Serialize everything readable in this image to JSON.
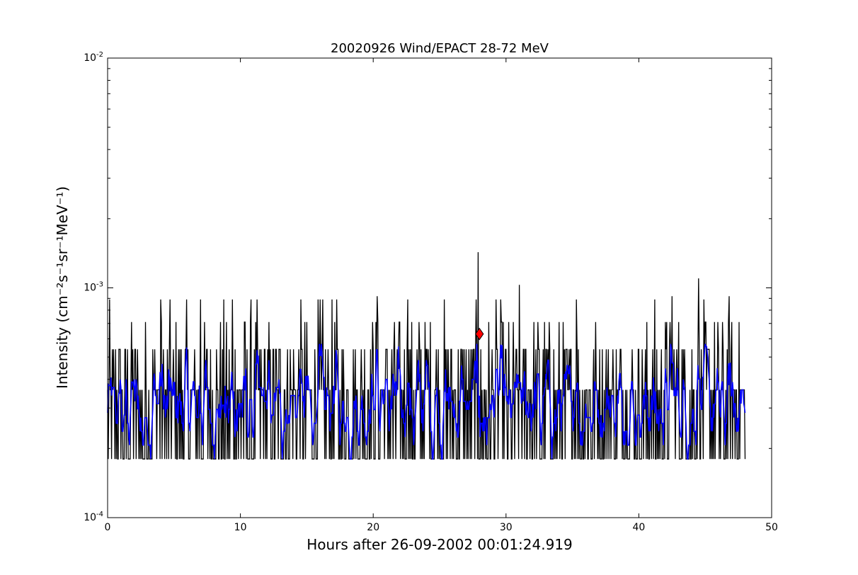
{
  "chart_data": {
    "type": "line",
    "title": "20020926 Wind/EPACT 28-72 MeV",
    "xlabel": "Hours after 26-09-2002 00:01:24.919",
    "ylabel": "Intensity (cm⁻²s⁻¹sr⁻¹MeV⁻¹)",
    "xlim": [
      0,
      50
    ],
    "ylim": [
      0.0001,
      0.01
    ],
    "yscale": "log",
    "grid": false,
    "x_ticks": [
      0,
      10,
      20,
      30,
      40,
      50
    ],
    "x_tick_labels": [
      "0",
      "10",
      "20",
      "30",
      "40",
      "50"
    ],
    "y_ticks": [
      0.0001,
      0.001,
      0.01
    ],
    "y_tick_labels": [
      {
        "base": "10",
        "exp": "-4"
      },
      {
        "base": "10",
        "exp": "-3"
      },
      {
        "base": "10",
        "exp": "-2"
      }
    ],
    "series": [
      {
        "color": "#000000",
        "x_range": [
          0,
          48
        ],
        "levels": [
          0.00018,
          0.00036,
          0.00054,
          0.00071,
          0.00089
        ],
        "notable_points": [
          {
            "x": 4.0,
            "y": 0.00089
          },
          {
            "x": 7.0,
            "y": 0.00089
          },
          {
            "x": 9.4,
            "y": 0.00089
          },
          {
            "x": 20.3,
            "y": 0.00092
          },
          {
            "x": 22.6,
            "y": 0.00089
          },
          {
            "x": 27.9,
            "y": 0.00143
          },
          {
            "x": 31.0,
            "y": 0.00103
          },
          {
            "x": 35.3,
            "y": 0.00089
          },
          {
            "x": 42.5,
            "y": 0.00092
          },
          {
            "x": 44.5,
            "y": 0.0011
          },
          {
            "x": 46.8,
            "y": 0.00092
          }
        ]
      },
      {
        "color": "#0000ff",
        "x_range": [
          0,
          48
        ],
        "typical_range": [
          0.00018,
          0.00057
        ]
      }
    ],
    "marker": {
      "shape": "diamond",
      "color": "#ff0000",
      "x": 28.0,
      "y": 0.00063
    }
  }
}
